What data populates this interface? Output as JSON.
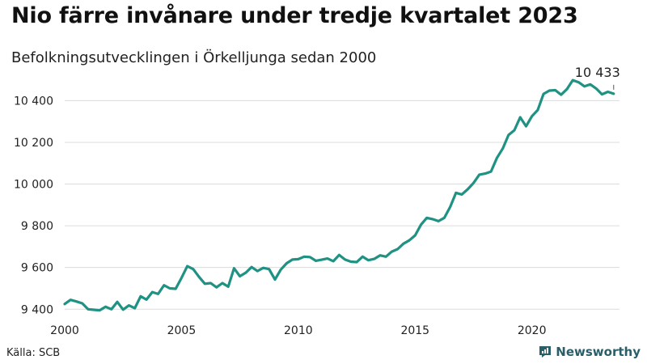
{
  "header": {
    "title": "Nio färre invånare under tredje kvartalet 2023",
    "subtitle": "Befolkningsutvecklingen i Örkelljunga sedan 2000"
  },
  "footer": {
    "source": "Källa: SCB",
    "brand": "Newsworthy",
    "brand_icon": "newsworthy-logo-icon"
  },
  "colors": {
    "line": "#1f9283",
    "grid": "#dcdcdc",
    "brand": "#2a5e68"
  },
  "chart_data": {
    "type": "line",
    "title": "Nio färre invånare under tredje kvartalet 2023",
    "subtitle": "Befolkningsutvecklingen i Örkelljunga sedan 2000",
    "x_start": 2000,
    "x_step": 0.25,
    "xlim": [
      2000,
      2023.75
    ],
    "ylim": [
      9370,
      10510
    ],
    "x_ticks": [
      2000,
      2005,
      2010,
      2015,
      2020
    ],
    "x_tick_labels": [
      "2000",
      "2005",
      "2010",
      "2015",
      "2020"
    ],
    "y_ticks": [
      9400,
      9600,
      9800,
      10000,
      10200,
      10400
    ],
    "y_tick_labels": [
      "9 400",
      "9 600",
      "9 800",
      "10 000",
      "10 200",
      "10 400"
    ],
    "grid": "horizontal",
    "legend": "none",
    "annotation": {
      "x": 2023.5,
      "y": 10433,
      "label": "10 433"
    },
    "values": [
      9425,
      9445,
      9437,
      9428,
      9400,
      9397,
      9395,
      9412,
      9400,
      9435,
      9398,
      9418,
      9405,
      9462,
      9446,
      9482,
      9473,
      9515,
      9500,
      9498,
      9550,
      9606,
      9592,
      9555,
      9522,
      9525,
      9505,
      9525,
      9508,
      9596,
      9558,
      9575,
      9602,
      9583,
      9598,
      9592,
      9542,
      9590,
      9620,
      9638,
      9640,
      9652,
      9650,
      9632,
      9637,
      9643,
      9630,
      9660,
      9638,
      9628,
      9626,
      9652,
      9635,
      9641,
      9658,
      9652,
      9676,
      9688,
      9714,
      9730,
      9754,
      9805,
      9838,
      9832,
      9822,
      9838,
      9890,
      9958,
      9950,
      9975,
      10005,
      10045,
      10050,
      10060,
      10125,
      10170,
      10235,
      10258,
      10320,
      10277,
      10325,
      10355,
      10432,
      10448,
      10450,
      10428,
      10455,
      10498,
      10488,
      10468,
      10478,
      10458,
      10430,
      10442,
      10433
    ]
  }
}
